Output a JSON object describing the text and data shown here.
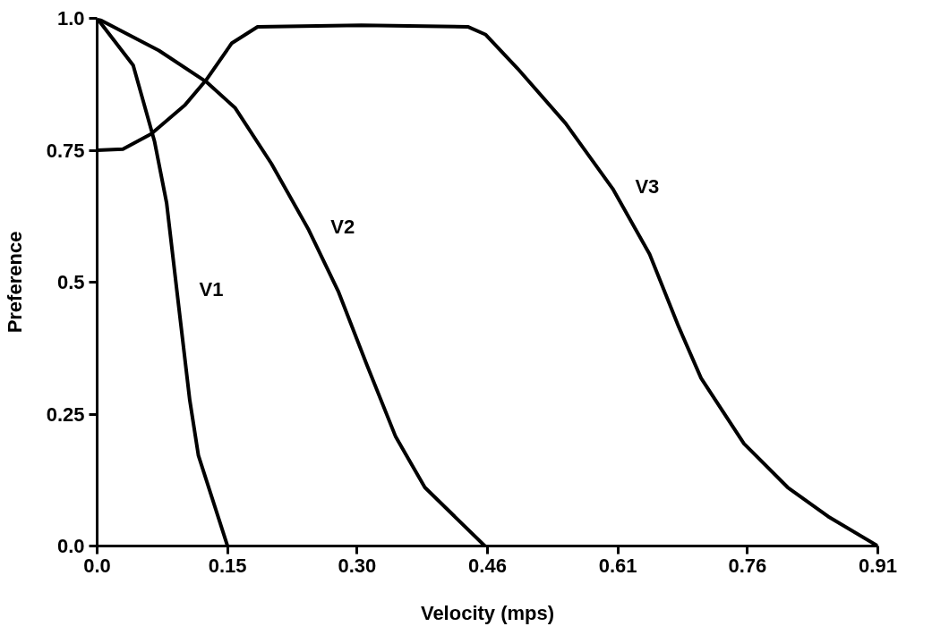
{
  "chart_data": {
    "type": "line",
    "xlabel": "Velocity (mps)",
    "ylabel": "Preference",
    "xlim": [
      0,
      0.91
    ],
    "ylim": [
      0,
      1.0
    ],
    "xticks": [
      {
        "value": 0,
        "label": "0.0"
      },
      {
        "value": 0.152,
        "label": "0.15"
      },
      {
        "value": 0.303,
        "label": "0.30"
      },
      {
        "value": 0.455,
        "label": "0.46"
      },
      {
        "value": 0.607,
        "label": "0.61"
      },
      {
        "value": 0.758,
        "label": "0.76"
      },
      {
        "value": 0.91,
        "label": "0.91"
      }
    ],
    "yticks": [
      {
        "value": 0,
        "label": "0.0"
      },
      0.25,
      0.5,
      0.75,
      {
        "value": 1.0,
        "label": "1.0"
      }
    ],
    "grid": false,
    "marker": "none",
    "line_style": "solid",
    "series": [
      {
        "name": "V1",
        "color": "#000000",
        "x": [
          0,
          0.042,
          0.067,
          0.081,
          0.093,
          0.108,
          0.118,
          0.152
        ],
        "values": [
          1.0,
          0.911,
          0.766,
          0.65,
          0.483,
          0.276,
          0.172,
          0
        ]
      },
      {
        "name": "V2",
        "color": "#000000",
        "x": [
          0,
          0.072,
          0.127,
          0.161,
          0.203,
          0.246,
          0.281,
          0.314,
          0.348,
          0.382,
          0.452
        ],
        "values": [
          1.0,
          0.939,
          0.88,
          0.83,
          0.725,
          0.601,
          0.483,
          0.345,
          0.207,
          0.111,
          0
        ]
      },
      {
        "name": "V3",
        "color": "#000000",
        "x": [
          0,
          0.03,
          0.063,
          0.102,
          0.127,
          0.157,
          0.187,
          0.308,
          0.432,
          0.453,
          0.49,
          0.546,
          0.601,
          0.644,
          0.678,
          0.704,
          0.754,
          0.805,
          0.852,
          0.91
        ],
        "values": [
          0.75,
          0.752,
          0.781,
          0.835,
          0.883,
          0.953,
          0.984,
          0.987,
          0.984,
          0.969,
          0.905,
          0.801,
          0.677,
          0.553,
          0.415,
          0.318,
          0.194,
          0.111,
          0.056,
          0
        ]
      }
    ]
  }
}
